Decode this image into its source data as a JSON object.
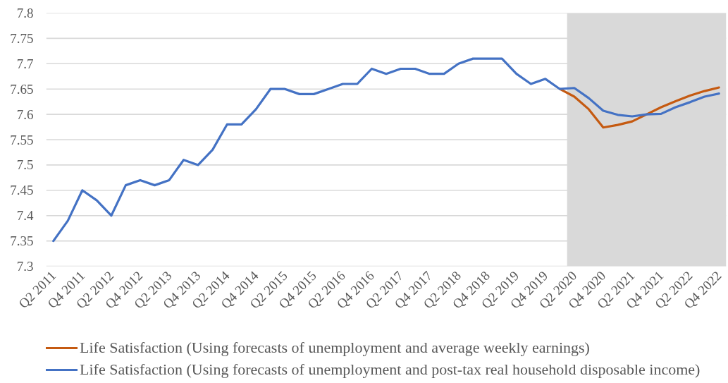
{
  "chart_data": {
    "type": "line",
    "categories": [
      "Q2 2011",
      null,
      "Q4 2011",
      null,
      "Q2 2012",
      null,
      "Q4 2012",
      null,
      "Q2 2013",
      null,
      "Q4 2013",
      null,
      "Q2 2014",
      null,
      "Q4 2014",
      null,
      "Q2 2015",
      null,
      "Q4 2015",
      null,
      "Q2 2016",
      null,
      "Q4 2016",
      null,
      "Q2 2017",
      null,
      "Q4 2017",
      null,
      "Q2 2018",
      null,
      "Q4 2018",
      null,
      "Q2 2019",
      null,
      "Q4 2019",
      null,
      "Q2 2020",
      null,
      "Q4 2020",
      null,
      "Q2 2021",
      null,
      "Q4 2021",
      null,
      "Q2 2022",
      null,
      "Q4 2022"
    ],
    "series": [
      {
        "name": "Life Satisfaction (Using forecasts of unemployment and average weekly earnings)",
        "color": "#c55a11",
        "values": [
          null,
          null,
          null,
          null,
          null,
          null,
          null,
          null,
          null,
          null,
          null,
          null,
          null,
          null,
          null,
          null,
          null,
          null,
          null,
          null,
          null,
          null,
          null,
          null,
          null,
          null,
          null,
          null,
          null,
          null,
          null,
          null,
          null,
          null,
          null,
          7.65,
          7.635,
          7.61,
          7.574,
          7.579,
          7.586,
          7.6,
          7.614,
          7.626,
          7.637,
          7.646,
          7.653
        ]
      },
      {
        "name": "Life Satisfaction (Using forecasts of unemployment and post-tax real household disposable income)",
        "color": "#4472c4",
        "values": [
          7.35,
          7.39,
          7.45,
          7.43,
          7.4,
          7.46,
          7.47,
          7.46,
          7.47,
          7.51,
          7.5,
          7.53,
          7.58,
          7.58,
          7.61,
          7.65,
          7.65,
          7.64,
          7.64,
          7.65,
          7.66,
          7.66,
          7.69,
          7.68,
          7.69,
          7.69,
          7.68,
          7.68,
          7.7,
          7.71,
          7.71,
          7.71,
          7.68,
          7.66,
          7.67,
          7.65,
          7.652,
          7.632,
          7.607,
          7.599,
          7.596,
          7.6,
          7.601,
          7.614,
          7.624,
          7.635,
          7.641
        ]
      }
    ],
    "ylim": [
      7.3,
      7.8
    ],
    "yticks": [
      7.3,
      7.35,
      7.4,
      7.45,
      7.5,
      7.55,
      7.6,
      7.65,
      7.7,
      7.75,
      7.8
    ],
    "grid": "y",
    "legend": "bottom",
    "line_style": "solid",
    "bands": [
      {
        "axis": "x",
        "from": "Q2 2020",
        "to": "Q4 2022",
        "color": "#d9d9d9"
      }
    ]
  }
}
